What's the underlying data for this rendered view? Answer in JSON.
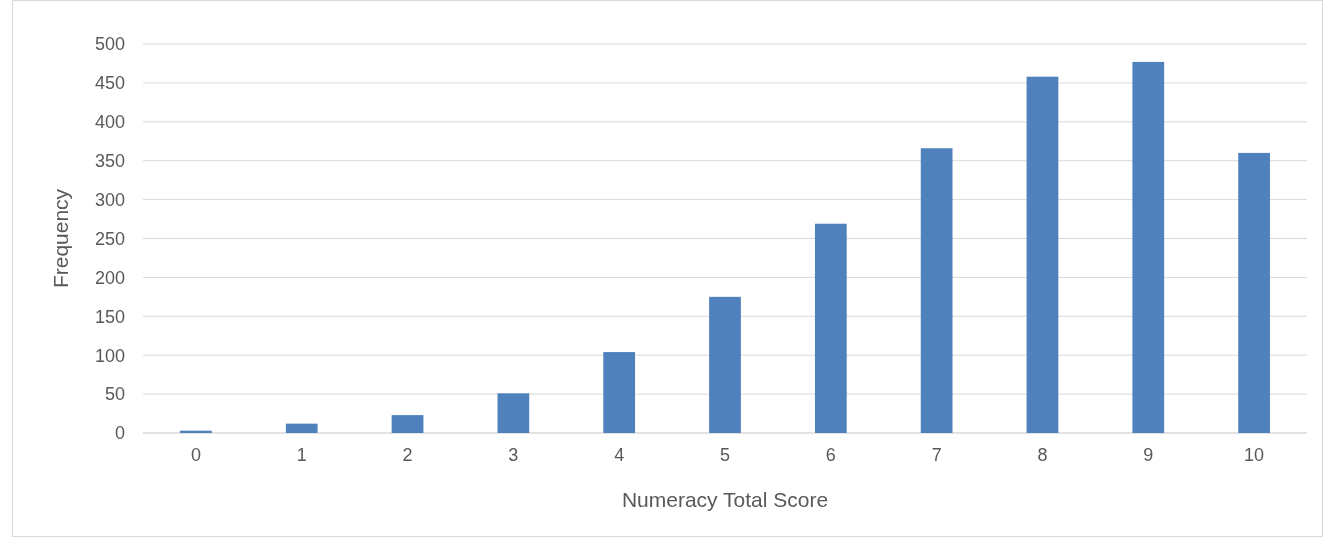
{
  "chart_data": {
    "type": "bar",
    "xlabel": "Numeracy Total Score",
    "ylabel": "Frequency",
    "categories": [
      "0",
      "1",
      "2",
      "3",
      "4",
      "5",
      "6",
      "7",
      "8",
      "9",
      "10"
    ],
    "values": [
      3,
      12,
      23,
      51,
      104,
      175,
      269,
      366,
      458,
      477,
      360
    ],
    "color": "#4f81bd",
    "ylim": [
      0,
      500
    ],
    "yticks": [
      0,
      50,
      100,
      150,
      200,
      250,
      300,
      350,
      400,
      450,
      500
    ],
    "grid": "y"
  }
}
